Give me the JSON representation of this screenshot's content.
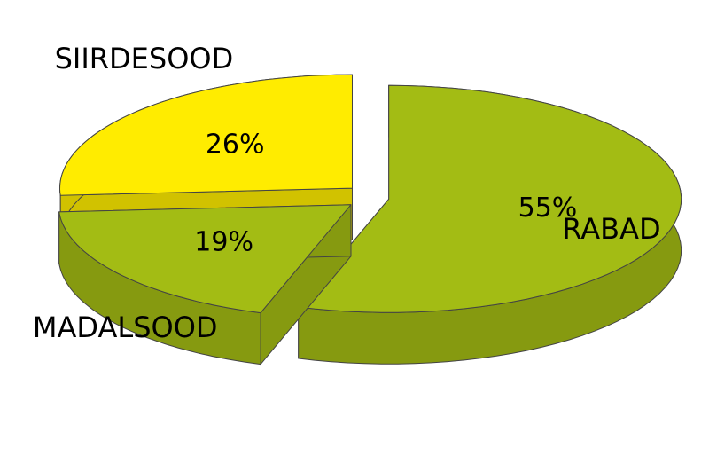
{
  "chart_data": {
    "type": "pie",
    "categories": [
      "RABAD",
      "MADALSOOD",
      "SIIRDESOOD"
    ],
    "values": [
      55,
      19,
      26
    ],
    "value_labels": [
      "55%",
      "19%",
      "26%"
    ],
    "colors": [
      "#a3bc14",
      "#a3bc14",
      "#ffec00"
    ]
  }
}
